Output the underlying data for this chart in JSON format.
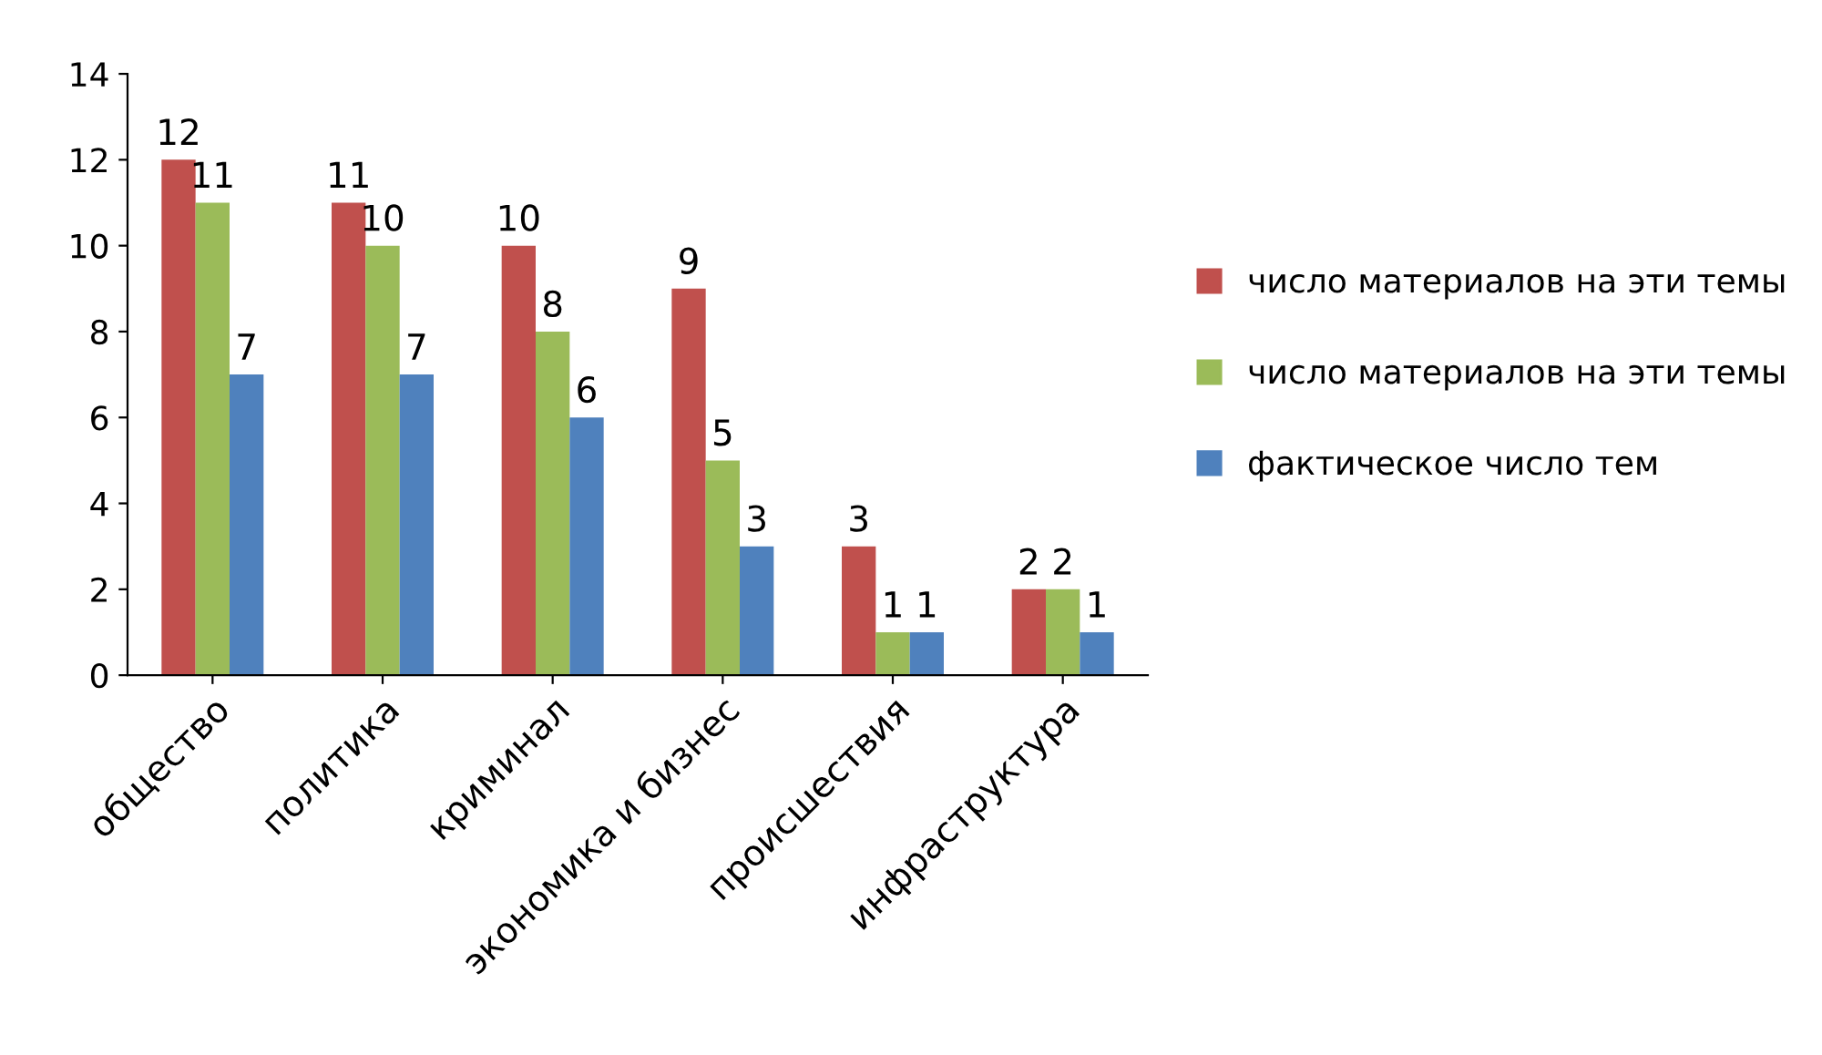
{
  "chart_data": {
    "type": "bar",
    "categories": [
      "общество",
      "политика",
      "криминал",
      "экономика и бизнес",
      "происшествия",
      "инфраструктура"
    ],
    "series": [
      {
        "name": "число материалов на эти темы",
        "color": "#c0504d",
        "values": [
          12,
          11,
          10,
          9,
          3,
          2
        ]
      },
      {
        "name": "число материалов на эти темы",
        "color": "#9bbb59",
        "values": [
          11,
          10,
          8,
          5,
          1,
          2
        ]
      },
      {
        "name": "фактическое число тем",
        "color": "#4f81bd",
        "values": [
          7,
          7,
          6,
          3,
          1,
          1
        ]
      }
    ],
    "ylim": [
      0,
      14
    ],
    "yticks": [
      0,
      2,
      4,
      6,
      8,
      10,
      12,
      14
    ],
    "grid": false,
    "legend": "right",
    "data_labels": true
  }
}
